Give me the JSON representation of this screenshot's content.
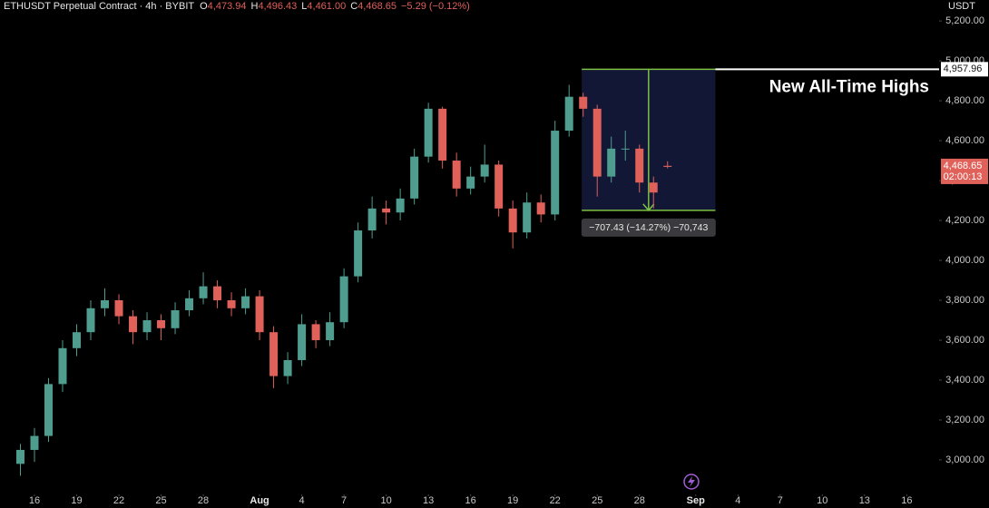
{
  "chart_data": {
    "type": "candlestick",
    "title": "ETHUSDT Perpetual Contract · 4h · BYBIT",
    "header_values": [
      {
        "key": "O",
        "text": "4,473.94"
      },
      {
        "key": "H",
        "text": "4,496.43"
      },
      {
        "key": "L",
        "text": "4,461.00"
      },
      {
        "key": "C",
        "text": "4,468.65"
      },
      {
        "key": "",
        "text": "−5.29 (−0.12%)"
      }
    ],
    "y_axis_label": "USDT",
    "up_color": "#4f9d8f",
    "down_color": "#e0605a",
    "x": [
      15,
      16,
      17,
      18,
      19,
      20,
      21,
      22,
      23,
      24,
      25,
      26,
      27,
      28,
      29,
      30,
      31,
      32,
      33,
      34,
      35,
      36,
      37,
      38,
      39,
      40,
      41,
      42,
      43,
      44,
      45,
      46,
      47,
      48,
      49,
      50,
      51,
      52,
      53,
      54,
      55,
      56,
      57,
      58,
      59,
      60,
      61
    ],
    "open": [
      2980,
      3050,
      3120,
      3380,
      3560,
      3640,
      3760,
      3800,
      3720,
      3640,
      3700,
      3660,
      3750,
      3810,
      3870,
      3800,
      3760,
      3820,
      3640,
      3420,
      3500,
      3680,
      3600,
      3690,
      3920,
      4150,
      4260,
      4240,
      4310,
      4520,
      4760,
      4500,
      4360,
      4420,
      4480,
      4260,
      4140,
      4290,
      4230,
      4650,
      4820,
      4760,
      4420,
      4560,
      4560,
      4390,
      4473.94
    ],
    "high": [
      3080,
      3160,
      3410,
      3600,
      3680,
      3800,
      3860,
      3830,
      3750,
      3740,
      3730,
      3790,
      3850,
      3940,
      3900,
      3840,
      3860,
      3850,
      3670,
      3540,
      3730,
      3700,
      3740,
      3960,
      4190,
      4320,
      4300,
      4360,
      4560,
      4790,
      4770,
      4540,
      4470,
      4580,
      4500,
      4300,
      4340,
      4330,
      4700,
      4880,
      4840,
      4780,
      4620,
      4650,
      4580,
      4420,
      4496.43
    ],
    "low": [
      2920,
      2990,
      3090,
      3340,
      3520,
      3600,
      3720,
      3680,
      3580,
      3600,
      3600,
      3630,
      3720,
      3780,
      3760,
      3720,
      3730,
      3600,
      3360,
      3380,
      3470,
      3560,
      3570,
      3660,
      3890,
      4110,
      4180,
      4200,
      4280,
      4490,
      4460,
      4320,
      4330,
      4390,
      4220,
      4060,
      4110,
      4190,
      4200,
      4620,
      4720,
      4320,
      4390,
      4500,
      4340,
      4260,
      4461.0
    ],
    "close": [
      3050,
      3120,
      3380,
      3560,
      3640,
      3760,
      3800,
      3720,
      3640,
      3700,
      3660,
      3750,
      3810,
      3870,
      3800,
      3760,
      3820,
      3640,
      3420,
      3500,
      3680,
      3600,
      3690,
      3920,
      4150,
      4260,
      4240,
      4310,
      4520,
      4760,
      4500,
      4360,
      4420,
      4480,
      4260,
      4140,
      4290,
      4230,
      4650,
      4820,
      4760,
      4420,
      4560,
      4560,
      4390,
      4340,
      4468.65
    ],
    "xlim": [
      13.55,
      80.3
    ],
    "xticks": [
      {
        "value": 16,
        "label": "16"
      },
      {
        "value": 19,
        "label": "19"
      },
      {
        "value": 22,
        "label": "22"
      },
      {
        "value": 25,
        "label": "25"
      },
      {
        "value": 28,
        "label": "28"
      },
      {
        "value": 32,
        "label": "Aug"
      },
      {
        "value": 35,
        "label": "4"
      },
      {
        "value": 38,
        "label": "7"
      },
      {
        "value": 41,
        "label": "10"
      },
      {
        "value": 44,
        "label": "13"
      },
      {
        "value": 47,
        "label": "16"
      },
      {
        "value": 50,
        "label": "19"
      },
      {
        "value": 53,
        "label": "22"
      },
      {
        "value": 56,
        "label": "25"
      },
      {
        "value": 59,
        "label": "28"
      },
      {
        "value": 63,
        "label": "Sep"
      },
      {
        "value": 66,
        "label": "4"
      },
      {
        "value": 69,
        "label": "7"
      },
      {
        "value": 72,
        "label": "10"
      },
      {
        "value": 75,
        "label": "13"
      },
      {
        "value": 78,
        "label": "16"
      }
    ],
    "ylim": [
      2827,
      5305
    ],
    "yticks": [
      {
        "value": 3000,
        "label": "3,000.00"
      },
      {
        "value": 3200,
        "label": "3,200.00"
      },
      {
        "value": 3400,
        "label": "3,400.00"
      },
      {
        "value": 3600,
        "label": "3,600.00"
      },
      {
        "value": 3800,
        "label": "3,800.00"
      },
      {
        "value": 4000,
        "label": "4,000.00"
      },
      {
        "value": 4200,
        "label": "4,200.00"
      },
      {
        "value": 4400,
        "label": "4,400.00"
      },
      {
        "value": 4600,
        "label": "4,600.00"
      },
      {
        "value": 4800,
        "label": "4,800.00"
      },
      {
        "value": 5000,
        "label": "5,000.00"
      },
      {
        "value": 5200,
        "label": "5,200.00"
      }
    ],
    "grid": false,
    "ath": {
      "value": 4957.96,
      "label": "4,957.96",
      "text": "New All-Time Highs"
    },
    "range": {
      "x": [
        54.9,
        64.4
      ],
      "top": 4957.96,
      "bottom": 4250.53,
      "label": "−707.43 (−14.27%) −70,743"
    },
    "current": {
      "value": 4468.65,
      "label": "4,468.65",
      "countdown": "02:00:13"
    }
  }
}
